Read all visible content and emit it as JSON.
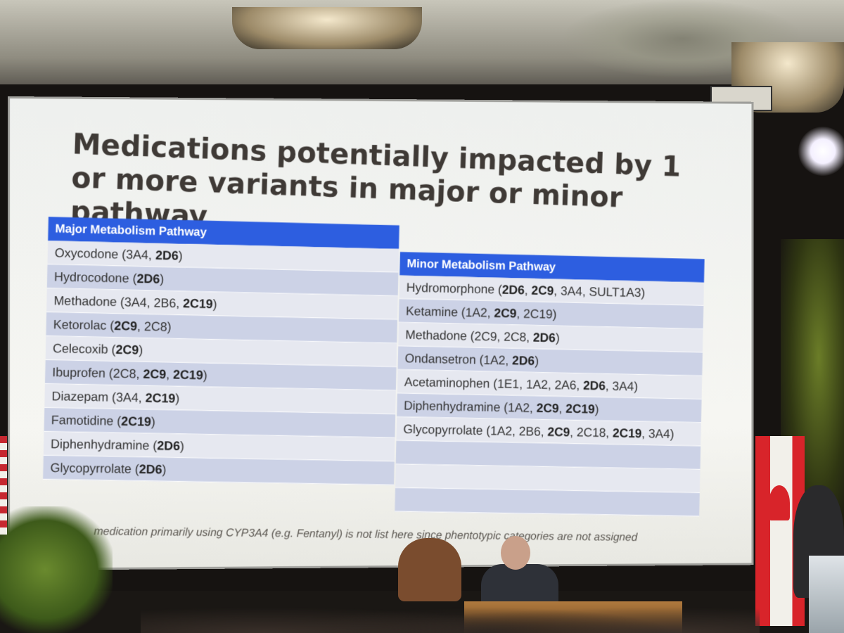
{
  "slide": {
    "title": "Medications potentially impacted by 1 or more variants in major or minor pathway",
    "major": {
      "header": "Major Metabolism Pathway",
      "rows": [
        {
          "name": "Oxycodone",
          "parts": [
            {
              "t": "3A4",
              "b": false
            },
            {
              "t": "2D6",
              "b": true
            }
          ]
        },
        {
          "name": "Hydrocodone",
          "parts": [
            {
              "t": "2D6",
              "b": true
            }
          ]
        },
        {
          "name": "Methadone",
          "parts": [
            {
              "t": "3A4",
              "b": false
            },
            {
              "t": "2B6",
              "b": false
            },
            {
              "t": "2C19",
              "b": true
            }
          ]
        },
        {
          "name": "Ketorolac",
          "parts": [
            {
              "t": "2C9",
              "b": true
            },
            {
              "t": "2C8",
              "b": false
            }
          ]
        },
        {
          "name": "Celecoxib",
          "parts": [
            {
              "t": "2C9",
              "b": true
            }
          ]
        },
        {
          "name": "Ibuprofen",
          "parts": [
            {
              "t": "2C8",
              "b": false
            },
            {
              "t": "2C9",
              "b": true
            },
            {
              "t": "2C19",
              "b": true
            }
          ]
        },
        {
          "name": "Diazepam",
          "parts": [
            {
              "t": "3A4",
              "b": false
            },
            {
              "t": "2C19",
              "b": true
            }
          ]
        },
        {
          "name": "Famotidine",
          "parts": [
            {
              "t": "2C19",
              "b": true
            }
          ]
        },
        {
          "name": "Diphenhydramine",
          "parts": [
            {
              "t": "2D6",
              "b": true
            }
          ]
        },
        {
          "name": "Glycopyrrolate",
          "parts": [
            {
              "t": "2D6",
              "b": true
            }
          ]
        }
      ]
    },
    "minor": {
      "header": "Minor Metabolism Pathway",
      "rows": [
        {
          "name": "Hydromorphone",
          "parts": [
            {
              "t": "2D6",
              "b": true
            },
            {
              "t": "2C9",
              "b": true
            },
            {
              "t": "3A4",
              "b": false
            },
            {
              "t": "SULT1A3",
              "b": false
            }
          ]
        },
        {
          "name": "Ketamine",
          "parts": [
            {
              "t": "1A2",
              "b": false
            },
            {
              "t": "2C9",
              "b": true
            },
            {
              "t": "2C19",
              "b": false
            }
          ]
        },
        {
          "name": "Methadone",
          "parts": [
            {
              "t": "2C9",
              "b": false
            },
            {
              "t": "2C8",
              "b": false
            },
            {
              "t": "2D6",
              "b": true
            }
          ]
        },
        {
          "name": "Ondansetron",
          "parts": [
            {
              "t": "1A2",
              "b": false
            },
            {
              "t": "2D6",
              "b": true
            }
          ]
        },
        {
          "name": "Acetaminophen",
          "parts": [
            {
              "t": "1E1",
              "b": false
            },
            {
              "t": "1A2",
              "b": false
            },
            {
              "t": "2A6",
              "b": false
            },
            {
              "t": "2D6",
              "b": true
            },
            {
              "t": "3A4",
              "b": false
            }
          ]
        },
        {
          "name": "Diphenhydramine",
          "parts": [
            {
              "t": "1A2",
              "b": false
            },
            {
              "t": "2C9",
              "b": true
            },
            {
              "t": "2C19",
              "b": true
            }
          ]
        },
        {
          "name": "Glycopyrrolate",
          "parts": [
            {
              "t": "1A2",
              "b": false
            },
            {
              "t": "2B6",
              "b": false
            },
            {
              "t": "2C9",
              "b": true
            },
            {
              "t": "2C18",
              "b": false
            },
            {
              "t": "2C19",
              "b": true
            },
            {
              "t": "3A4",
              "b": false
            }
          ]
        },
        {
          "name": "",
          "parts": []
        },
        {
          "name": "",
          "parts": []
        },
        {
          "name": "",
          "parts": []
        }
      ]
    },
    "footnote": "medication primarily using CYP3A4 (e.g. Fentanyl) is not list here since phentotypic categories are not assigned"
  },
  "colors": {
    "header_blue": "#2d5ee0",
    "row_dark": "#ccd2e6",
    "row_light": "#e6e8f0",
    "title_text": "#3f3a36"
  }
}
